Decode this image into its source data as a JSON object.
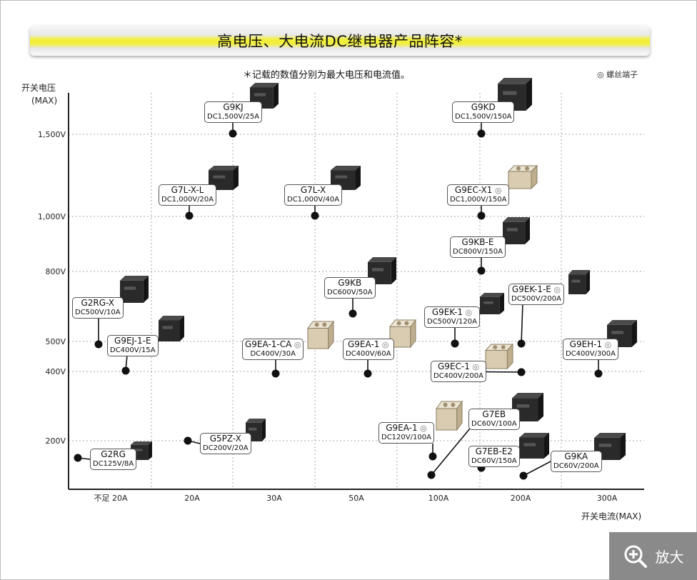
{
  "title": "高电压、大电流DC继电器产品阵容*",
  "note": "＊记载的数值分别为最大电压和电流值。",
  "legend": "◎ 螺丝端子",
  "y_axis_label": [
    "开关电压",
    "(MAX)"
  ],
  "x_axis_label": "开关电流(MAX)",
  "zoom_label": "放大",
  "zoom_icon": "zoom-in-icon",
  "chart_data": {
    "type": "scatter",
    "y_ticks": [
      "1,500V",
      "1,000V",
      "800V",
      "500V",
      "400V",
      "200V"
    ],
    "x_ticks": [
      "不足 20A",
      "20A",
      "30A",
      "50A",
      "100A",
      "200A",
      "300A"
    ],
    "points": [
      {
        "name": "G9KJ",
        "spec": "DC1,500V/25A",
        "screw": false
      },
      {
        "name": "G9KD",
        "spec": "DC1,500V/150A",
        "screw": false
      },
      {
        "name": "G7L-X-L",
        "spec": "DC1,000V/20A",
        "screw": false
      },
      {
        "name": "G7L-X",
        "spec": "DC1,000V/40A",
        "screw": false
      },
      {
        "name": "G9EC-X1",
        "spec": "DC1,000V/150A",
        "screw": true
      },
      {
        "name": "G9KB-E",
        "spec": "DC800V/150A",
        "screw": false
      },
      {
        "name": "G2RG-X",
        "spec": "DC500V/10A",
        "screw": false
      },
      {
        "name": "G9KB",
        "spec": "DC600V/50A",
        "screw": false
      },
      {
        "name": "G9EK-1-E",
        "spec": "DC500V/200A",
        "screw": true
      },
      {
        "name": "G9EK-1",
        "spec": "DC500V/120A",
        "screw": true
      },
      {
        "name": "G9EJ-1-E",
        "spec": "DC400V/15A",
        "screw": false
      },
      {
        "name": "G9EA-1-CA",
        "spec": "DC400V/30A",
        "screw": true
      },
      {
        "name": "G9EA-1",
        "spec": "DC400V/60A",
        "screw": true
      },
      {
        "name": "G9EC-1",
        "spec": "DC400V/200A",
        "screw": true
      },
      {
        "name": "G9EH-1",
        "spec": "DC400V/300A",
        "screw": true
      },
      {
        "name": "G5PZ-X",
        "spec": "DC200V/20A",
        "screw": false
      },
      {
        "name": "G2RG",
        "spec": "DC125V/8A",
        "screw": false
      },
      {
        "name": "G9EA-1",
        "spec": "DC120V/100A",
        "screw": true
      },
      {
        "name": "G7EB",
        "spec": "DC60V/100A",
        "screw": false
      },
      {
        "name": "G7EB-E2",
        "spec": "DC60V/150A",
        "screw": false
      },
      {
        "name": "G9KA",
        "spec": "DC60V/200A",
        "screw": false
      }
    ]
  }
}
